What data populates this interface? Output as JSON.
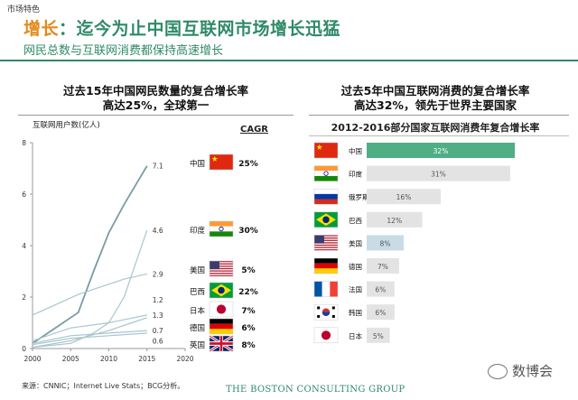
{
  "header": {
    "tag": "市场特色",
    "title_highlight": "增长",
    "title_rest": "：迄今为止中国互联网市场增长迅猛",
    "subtitle": "网民总数与互联网消费都保持高速增长"
  },
  "footer": {
    "source": "来源：CNNIC；Internet Live Stats；BCG分析。",
    "logo": "THE BOSTON CONSULTING GROUP",
    "watermark": "数博会"
  },
  "colors": {
    "brand": "#2f8a67",
    "highlight": "#e28a1c",
    "lines": "#a9c6cf",
    "china_line": "#7a9ca3",
    "bar_grey": "#e3e3e3",
    "bar_highlight": "#4fae84"
  },
  "chart_data": [
    {
      "type": "line",
      "title_line1": "过去15年中国网民数量的复合增长率",
      "title_line2": "高达25%，全球第一",
      "ylabel": "互联网用户数(亿人)",
      "xlim": [
        2000,
        2020
      ],
      "ylim": [
        0,
        8
      ],
      "x_ticks": [
        2000,
        2005,
        2010,
        2015,
        2020
      ],
      "y_ticks": [
        0,
        2,
        4,
        6,
        8
      ],
      "cagr_label": "CAGR",
      "series": [
        {
          "name": "中国",
          "flag": "china",
          "cagr": "25%",
          "end_label": "7.1",
          "emphasis": true,
          "points": [
            [
              2000,
              0.2
            ],
            [
              2003,
              0.8
            ],
            [
              2006,
              1.4
            ],
            [
              2008,
              3.0
            ],
            [
              2010,
              4.5
            ],
            [
              2012,
              5.6
            ],
            [
              2015,
              7.1
            ]
          ]
        },
        {
          "name": "印度",
          "flag": "india",
          "cagr": "30%",
          "end_label": "4.6",
          "points": [
            [
              2000,
              0.05
            ],
            [
              2005,
              0.2
            ],
            [
              2008,
              0.6
            ],
            [
              2010,
              1.0
            ],
            [
              2012,
              2.0
            ],
            [
              2015,
              4.6
            ]
          ]
        },
        {
          "name": "美国",
          "flag": "usa",
          "cagr": "5%",
          "end_label": "2.9",
          "points": [
            [
              2000,
              1.3
            ],
            [
              2003,
              1.7
            ],
            [
              2006,
              2.1
            ],
            [
              2009,
              2.4
            ],
            [
              2012,
              2.7
            ],
            [
              2015,
              2.9
            ]
          ]
        },
        {
          "name": "巴西",
          "flag": "brazil",
          "cagr": "22%",
          "end_label": "1.2",
          "points": [
            [
              2000,
              0.05
            ],
            [
              2005,
              0.3
            ],
            [
              2010,
              0.7
            ],
            [
              2013,
              1.0
            ],
            [
              2015,
              1.2
            ]
          ]
        },
        {
          "name": "日本",
          "flag": "japan",
          "cagr": "7%",
          "end_label": "1.3",
          "points": [
            [
              2000,
              0.3
            ],
            [
              2005,
              0.8
            ],
            [
              2010,
              1.0
            ],
            [
              2015,
              1.3
            ]
          ]
        },
        {
          "name": "德国",
          "flag": "germany",
          "cagr": "6%",
          "end_label": "0.7",
          "points": [
            [
              2000,
              0.2
            ],
            [
              2005,
              0.5
            ],
            [
              2010,
              0.6
            ],
            [
              2015,
              0.7
            ]
          ]
        },
        {
          "name": "英国",
          "flag": "uk",
          "cagr": "8%",
          "end_label": "0.6",
          "points": [
            [
              2000,
              0.15
            ],
            [
              2005,
              0.4
            ],
            [
              2010,
              0.5
            ],
            [
              2015,
              0.6
            ]
          ]
        }
      ]
    },
    {
      "type": "bar",
      "title_line1": "过去5年中国互联网消费的复合增长率",
      "title_line2": "高达32%，领先于世界主要国家",
      "subtitle": "2012-2016部分国家互联网消费年复合增长率",
      "xlim": [
        0,
        32
      ],
      "categories": [
        "中国",
        "印度",
        "俄罗斯",
        "巴西",
        "美国",
        "德国",
        "法国",
        "韩国",
        "日本"
      ],
      "flags": [
        "china",
        "india",
        "russia",
        "brazil",
        "usa",
        "germany",
        "france",
        "korea",
        "japan"
      ],
      "values": [
        32,
        31,
        16,
        12,
        8,
        7,
        6,
        6,
        5
      ],
      "value_labels": [
        "32%",
        "31%",
        "16%",
        "12%",
        "8%",
        "7%",
        "6%",
        "6%",
        "5%"
      ]
    }
  ]
}
